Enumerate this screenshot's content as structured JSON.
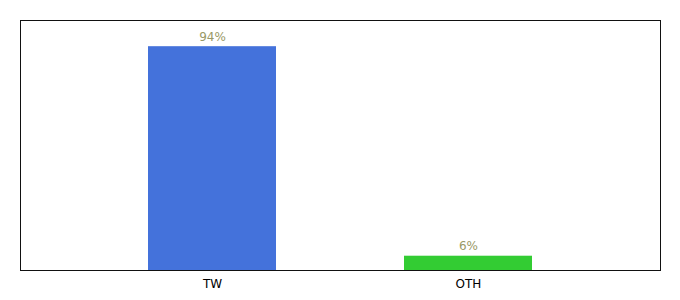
{
  "chart_data": {
    "type": "bar",
    "categories": [
      "TW",
      "OTH"
    ],
    "values": [
      94,
      6
    ],
    "value_labels": [
      "94%",
      "6%"
    ],
    "colors": [
      "#4472db",
      "#33cc33"
    ],
    "ylim": [
      0,
      105
    ],
    "yticks": [],
    "grid": false,
    "data_labels": true,
    "tick_labels": "x"
  }
}
